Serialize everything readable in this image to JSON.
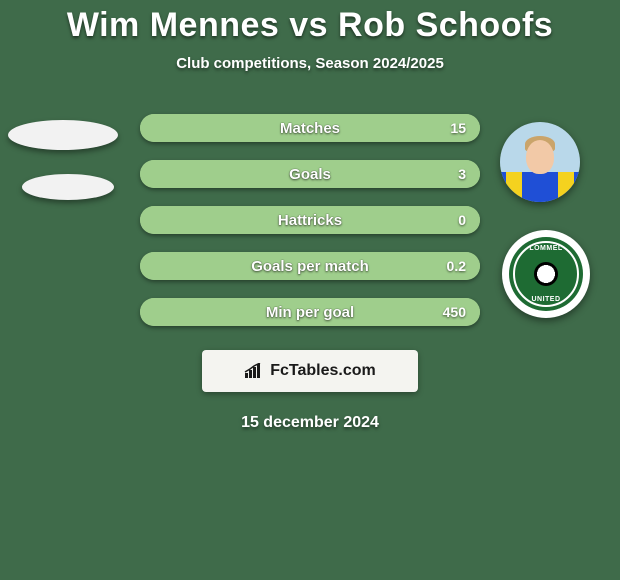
{
  "background_color": "#3f6b4a",
  "title": {
    "text": "Wim Mennes vs Rob Schoofs",
    "color": "#ffffff",
    "fontsize": 34
  },
  "subtitle": {
    "text": "Club competitions, Season 2024/2025",
    "color": "#ffffff",
    "fontsize": 15
  },
  "bars": {
    "track_color": "#9fce8c",
    "fill_color_left": "#4a8a3b",
    "label_color": "#ffffff",
    "value_color": "#ffffff",
    "label_fontsize": 15,
    "value_fontsize": 14,
    "height": 28,
    "radius": 14,
    "rows": [
      {
        "label": "Matches",
        "left_value": "",
        "right_value": "15",
        "left_pct": 0,
        "right_pct": 100
      },
      {
        "label": "Goals",
        "left_value": "",
        "right_value": "3",
        "left_pct": 0,
        "right_pct": 100
      },
      {
        "label": "Hattricks",
        "left_value": "",
        "right_value": "0",
        "left_pct": 0,
        "right_pct": 100
      },
      {
        "label": "Goals per match",
        "left_value": "",
        "right_value": "0.2",
        "left_pct": 0,
        "right_pct": 100
      },
      {
        "label": "Min per goal",
        "left_value": "",
        "right_value": "450",
        "left_pct": 0,
        "right_pct": 100
      }
    ]
  },
  "left_placeholder": {
    "ellipse_color": "#f2f2f2"
  },
  "club_badge": {
    "top_text": "LOMMEL",
    "bottom_text": "UNITED"
  },
  "brand": {
    "box_bg": "#f4f4f0",
    "text": "FcTables.com",
    "text_color": "#1a1a1a",
    "fontsize": 16,
    "icon_color": "#1a1a1a"
  },
  "date": {
    "text": "15 december 2024",
    "color": "#ffffff",
    "fontsize": 16
  }
}
